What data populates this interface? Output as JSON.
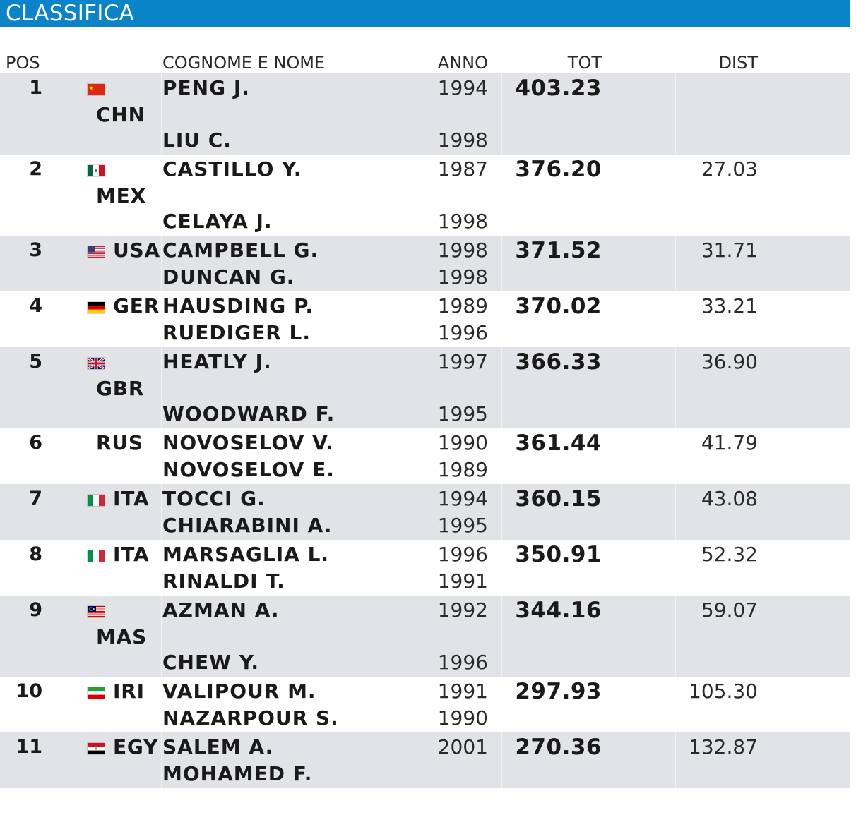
{
  "header": {
    "title": "CLASSIFICA"
  },
  "columns": {
    "pos": "POS",
    "name": "COGNOME E NOME",
    "year": "ANNO",
    "tot": "TOT",
    "dist": "DIST"
  },
  "rows": [
    {
      "pos": "1",
      "nat": "CHN",
      "flag": "chn",
      "flag_icon": "flag-china-icon",
      "nat_pos": "below",
      "height": 115,
      "tot": "403.23",
      "dist": "",
      "athletes": [
        {
          "name": "PENG J.",
          "year": "1994"
        },
        {
          "name": "LIU C.",
          "year": "1998"
        }
      ]
    },
    {
      "pos": "2",
      "nat": "MEX",
      "flag": "mex",
      "flag_icon": "flag-mexico-icon",
      "nat_pos": "below",
      "height": 115,
      "tot": "376.20",
      "dist": "27.03",
      "athletes": [
        {
          "name": "CASTILLO Y.",
          "year": "1987"
        },
        {
          "name": "CELAYA J.",
          "year": "1998"
        }
      ]
    },
    {
      "pos": "3",
      "nat": "USA",
      "flag": "usa",
      "flag_icon": "flag-usa-icon",
      "nat_pos": "inline",
      "height": 79,
      "tot": "371.52",
      "dist": "31.71",
      "athletes": [
        {
          "name": "CAMPBELL G.",
          "year": "1998"
        },
        {
          "name": "DUNCAN G.",
          "year": "1998"
        }
      ]
    },
    {
      "pos": "4",
      "nat": "GER",
      "flag": "ger",
      "flag_icon": "flag-germany-icon",
      "nat_pos": "inline",
      "height": 79,
      "tot": "370.02",
      "dist": "33.21",
      "athletes": [
        {
          "name": "HAUSDING P.",
          "year": "1989"
        },
        {
          "name": "RUEDIGER L.",
          "year": "1996"
        }
      ]
    },
    {
      "pos": "5",
      "nat": "GBR",
      "flag": "gbr",
      "flag_icon": "flag-uk-icon",
      "nat_pos": "below",
      "height": 115,
      "tot": "366.33",
      "dist": "36.90",
      "athletes": [
        {
          "name": "HEATLY J.",
          "year": "1997"
        },
        {
          "name": "WOODWARD F.",
          "year": "1995"
        }
      ]
    },
    {
      "pos": "6",
      "nat": "RUS",
      "flag": "",
      "flag_icon": "",
      "nat_pos": "noflag",
      "height": 79,
      "tot": "361.44",
      "dist": "41.79",
      "athletes": [
        {
          "name": "NOVOSELOV V.",
          "year": "1990"
        },
        {
          "name": "NOVOSELOV E.",
          "year": "1989"
        }
      ]
    },
    {
      "pos": "7",
      "nat": "ITA",
      "flag": "ita",
      "flag_icon": "flag-italy-icon",
      "nat_pos": "inline",
      "height": 79,
      "tot": "360.15",
      "dist": "43.08",
      "athletes": [
        {
          "name": "TOCCI G.",
          "year": "1994"
        },
        {
          "name": "CHIARABINI A.",
          "year": "1995"
        }
      ]
    },
    {
      "pos": "8",
      "nat": "ITA",
      "flag": "ita",
      "flag_icon": "flag-italy-icon",
      "nat_pos": "inline",
      "height": 79,
      "tot": "350.91",
      "dist": "52.32",
      "athletes": [
        {
          "name": "MARSAGLIA L.",
          "year": "1996"
        },
        {
          "name": "RINALDI T.",
          "year": "1991"
        }
      ]
    },
    {
      "pos": "9",
      "nat": "MAS",
      "flag": "mas",
      "flag_icon": "flag-malaysia-icon",
      "nat_pos": "below",
      "height": 115,
      "tot": "344.16",
      "dist": "59.07",
      "athletes": [
        {
          "name": "AZMAN A.",
          "year": "1992"
        },
        {
          "name": "CHEW Y.",
          "year": "1996"
        }
      ]
    },
    {
      "pos": "10",
      "nat": "IRI",
      "flag": "iri",
      "flag_icon": "flag-iran-icon",
      "nat_pos": "inline",
      "height": 79,
      "tot": "297.93",
      "dist": "105.30",
      "athletes": [
        {
          "name": "VALIPOUR M.",
          "year": "1991"
        },
        {
          "name": "NAZARPOUR S.",
          "year": "1990"
        }
      ]
    },
    {
      "pos": "11",
      "nat": "EGY",
      "flag": "egy",
      "flag_icon": "flag-egypt-icon",
      "nat_pos": "inline",
      "height": 79,
      "tot": "270.36",
      "dist": "132.87",
      "athletes": [
        {
          "name": "SALEM A.",
          "year": "2001"
        },
        {
          "name": "MOHAMED F.",
          "year": ""
        }
      ]
    }
  ]
}
